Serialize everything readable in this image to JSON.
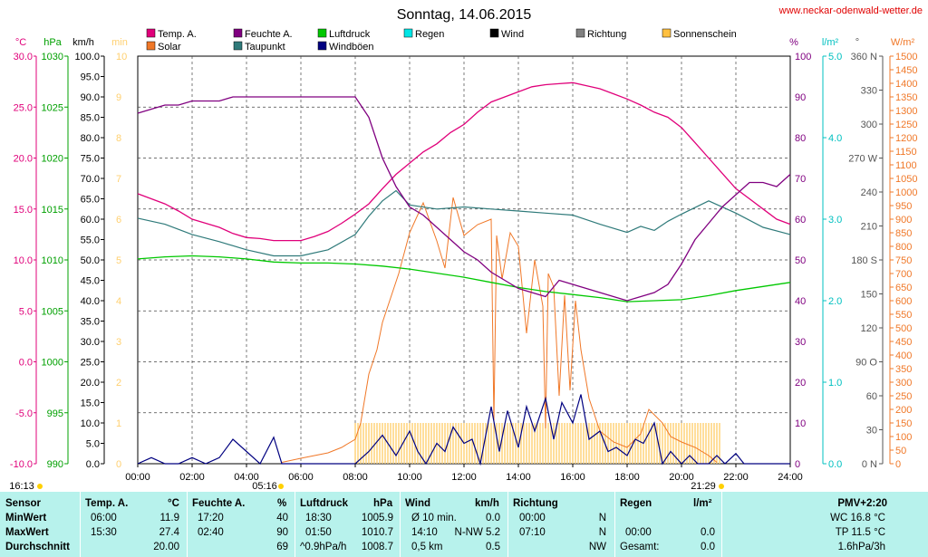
{
  "header": {
    "title": "Sonntag, 14.06.2015",
    "site": "www.neckar-odenwald-wetter.de"
  },
  "legend": [
    {
      "label": "Temp. A.",
      "color": "#e0007a"
    },
    {
      "label": "Feuchte A.",
      "color": "#800080"
    },
    {
      "label": "Luftdruck",
      "color": "#00c800"
    },
    {
      "label": "Regen",
      "color": "#00e6e6"
    },
    {
      "label": "Wind",
      "color": "#000000"
    },
    {
      "label": "Richtung",
      "color": "#808080"
    },
    {
      "label": "Sonnenschein",
      "color": "#ffc040"
    },
    {
      "label": "Solar",
      "color": "#f07828"
    },
    {
      "label": "Taupunkt",
      "color": "#2f7a7a"
    },
    {
      "label": "Windböen",
      "color": "#000080"
    }
  ],
  "axis_units": {
    "temp": "°C",
    "pressure": "hPa",
    "wind": "km/h",
    "sun": "min",
    "humidity": "%",
    "rain": "l/m²",
    "direction": "°",
    "solar": "W/m²"
  },
  "axes": {
    "temp_ticks": [
      "30.0",
      "25.0",
      "20.0",
      "15.0",
      "10.0",
      "5.0",
      "0.0",
      "-5.0",
      "-10.0"
    ],
    "pressure_ticks": [
      "1030",
      "1025",
      "1020",
      "1015",
      "1010",
      "1005",
      "1000",
      "995",
      "990"
    ],
    "wind_ticks": [
      "100.0",
      "95.0",
      "90.0",
      "85.0",
      "80.0",
      "75.0",
      "70.0",
      "65.0",
      "60.0",
      "55.0",
      "50.0",
      "45.0",
      "40.0",
      "35.0",
      "30.0",
      "25.0",
      "20.0",
      "15.0",
      "10.0",
      "5.0",
      "0.0"
    ],
    "sun_ticks": [
      "10",
      "9",
      "8",
      "7",
      "6",
      "5",
      "4",
      "3",
      "2",
      "1",
      "0"
    ],
    "humidity_ticks": [
      "100",
      "90",
      "80",
      "70",
      "60",
      "50",
      "40",
      "30",
      "20",
      "10",
      "0"
    ],
    "rain_ticks": [
      "5.0",
      "4.0",
      "3.0",
      "2.0",
      "1.0",
      "0.0"
    ],
    "direction_ticks": [
      "360 N",
      "330",
      "300",
      "270 W",
      "240",
      "210",
      "180 S",
      "150",
      "120",
      "90 O",
      "60",
      "30",
      "0 N"
    ],
    "solar_ticks": [
      "1500",
      "1450",
      "1400",
      "1350",
      "1300",
      "1250",
      "1200",
      "1150",
      "1100",
      "1050",
      "1000",
      "950",
      "900",
      "850",
      "800",
      "750",
      "700",
      "650",
      "600",
      "550",
      "500",
      "450",
      "400",
      "350",
      "300",
      "250",
      "200",
      "150",
      "100",
      "50",
      "0"
    ],
    "x_ticks": [
      "00:00",
      "02:00",
      "04:00",
      "06:00",
      "08:00",
      "10:00",
      "12:00",
      "14:00",
      "16:00",
      "18:00",
      "20:00",
      "22:00",
      "24:00"
    ],
    "markers": {
      "start": "16:13",
      "sunrise": "05:16",
      "sunset": "21:29"
    }
  },
  "chart_data": {
    "type": "line",
    "title": "Sonntag, 14.06.2015",
    "x_range": [
      "00:00",
      "24:00"
    ],
    "ylim_temp": [
      -10,
      30
    ],
    "ylim_pressure": [
      990,
      1030
    ],
    "ylim_wind": [
      0,
      100
    ],
    "ylim_humidity": [
      0,
      100
    ],
    "ylim_solar": [
      0,
      1500
    ],
    "grid": true,
    "series": [
      {
        "name": "Temp. A.",
        "unit": "°C",
        "x": [
          0,
          0.5,
          1,
          1.5,
          2,
          2.5,
          3,
          3.5,
          4,
          4.5,
          5,
          5.5,
          6,
          6.5,
          7,
          7.5,
          8,
          8.5,
          9,
          9.5,
          10,
          10.5,
          11,
          11.5,
          12,
          12.5,
          13,
          13.5,
          14,
          14.5,
          15,
          15.5,
          16,
          16.5,
          17,
          17.5,
          18,
          18.5,
          19,
          19.5,
          20,
          20.5,
          21,
          21.5,
          22,
          22.5,
          23,
          23.5,
          24
        ],
        "values": [
          16.5,
          16,
          15.5,
          14.8,
          14,
          13.6,
          13.2,
          12.6,
          12.2,
          12.1,
          11.9,
          11.9,
          11.9,
          12.3,
          12.8,
          13.6,
          14.5,
          15.5,
          17,
          18.4,
          19.5,
          20.6,
          21.4,
          22.5,
          23.3,
          24.5,
          25.5,
          26,
          26.5,
          27,
          27.2,
          27.3,
          27.4,
          27.1,
          26.8,
          26.3,
          25.8,
          25.2,
          24.5,
          24,
          23,
          21.5,
          20,
          18.5,
          17,
          16,
          15,
          14,
          13.5
        ]
      },
      {
        "name": "Feuchte A.",
        "unit": "%",
        "x": [
          0,
          0.5,
          1,
          1.5,
          2,
          2.5,
          3,
          3.5,
          4,
          4.5,
          5,
          5.5,
          6,
          6.5,
          7,
          7.5,
          8,
          8.5,
          9,
          9.5,
          10,
          10.5,
          11,
          11.5,
          12,
          12.5,
          13,
          13.5,
          14,
          14.5,
          15,
          15.5,
          16,
          16.5,
          17,
          17.5,
          18,
          18.5,
          19,
          19.5,
          20,
          20.5,
          21,
          21.5,
          22,
          22.5,
          23,
          23.5,
          24
        ],
        "values": [
          86,
          87,
          88,
          88,
          89,
          89,
          89,
          90,
          90,
          90,
          90,
          90,
          90,
          90,
          90,
          90,
          90,
          85,
          75,
          68,
          63,
          61,
          58,
          55,
          52,
          50,
          47,
          45,
          43,
          42,
          41,
          45,
          44,
          43,
          42,
          41,
          40,
          41,
          42,
          44,
          49,
          55,
          59,
          63,
          66,
          69,
          69,
          68,
          71
        ]
      },
      {
        "name": "Luftdruck",
        "unit": "hPa",
        "x": [
          0,
          1,
          2,
          3,
          4,
          5,
          6,
          7,
          8,
          9,
          10,
          11,
          12,
          13,
          14,
          15,
          16,
          17,
          18,
          19,
          20,
          21,
          22,
          23,
          24
        ],
        "values": [
          1010.1,
          1010.3,
          1010.4,
          1010.3,
          1010.1,
          1009.8,
          1009.7,
          1009.7,
          1009.6,
          1009.4,
          1009.1,
          1008.7,
          1008.3,
          1007.8,
          1007.3,
          1006.9,
          1006.6,
          1006.3,
          1005.9,
          1006,
          1006.1,
          1006.5,
          1007,
          1007.4,
          1007.8
        ]
      },
      {
        "name": "Taupunkt",
        "unit": "°C",
        "x": [
          0,
          1,
          2,
          3,
          4,
          5,
          6,
          7,
          8,
          8.5,
          9,
          9.5,
          10,
          11,
          12,
          13,
          14,
          15,
          16,
          17,
          18,
          18.5,
          19,
          19.5,
          20,
          21,
          22,
          23,
          24
        ],
        "values": [
          14.1,
          13.5,
          12.5,
          11.8,
          11.0,
          10.4,
          10.4,
          11.0,
          12.5,
          14.3,
          15.8,
          16.8,
          15.4,
          15.0,
          15.2,
          15.0,
          14.8,
          14.6,
          14.4,
          13.5,
          12.7,
          13.3,
          12.9,
          13.8,
          14.5,
          15.8,
          14.6,
          13.2,
          12.5
        ]
      },
      {
        "name": "Solar",
        "unit": "W/m²",
        "x": [
          5.3,
          6,
          7,
          7.5,
          8,
          8.2,
          8.5,
          8.8,
          9,
          9.3,
          9.6,
          10,
          10.5,
          11,
          11.3,
          11.6,
          12,
          12.5,
          13,
          13.1,
          13.2,
          13.4,
          13.7,
          14,
          14.3,
          14.6,
          14.9,
          15.0,
          15.1,
          15.3,
          15.5,
          15.7,
          15.9,
          16.1,
          16.3,
          16.6,
          17,
          17.5,
          18,
          18.5,
          18.8,
          19,
          19.3,
          19.6,
          20,
          20.5,
          21,
          21.3
        ],
        "values": [
          5,
          20,
          40,
          60,
          90,
          150,
          330,
          420,
          520,
          610,
          700,
          850,
          960,
          820,
          720,
          980,
          840,
          880,
          900,
          160,
          840,
          680,
          850,
          800,
          480,
          750,
          580,
          130,
          700,
          650,
          250,
          620,
          270,
          600,
          420,
          240,
          120,
          80,
          60,
          110,
          200,
          180,
          150,
          100,
          80,
          60,
          30,
          5
        ]
      },
      {
        "name": "Windböen",
        "unit": "km/h",
        "x": [
          0,
          0.5,
          1,
          1.5,
          2,
          2.5,
          3,
          3.5,
          4,
          4.5,
          5,
          5.3,
          5.6,
          6,
          7,
          8,
          8.5,
          9,
          9.5,
          10,
          10.3,
          10.6,
          11,
          11.3,
          11.6,
          12,
          12.3,
          12.6,
          13,
          13.3,
          13.6,
          14,
          14.3,
          14.6,
          15,
          15.3,
          15.6,
          16,
          16.3,
          16.6,
          17,
          17.3,
          17.6,
          18,
          18.3,
          18.6,
          19,
          19.3,
          19.6,
          20,
          20.3,
          20.6,
          21,
          21.3,
          21.6,
          22,
          22.3,
          23,
          24
        ],
        "values": [
          0,
          1.5,
          0,
          0,
          1.5,
          0,
          1.5,
          6,
          3,
          0,
          6.5,
          0,
          0,
          0,
          0,
          0,
          3,
          7,
          2,
          8,
          3,
          0,
          5,
          3,
          9,
          5,
          6,
          0,
          14,
          3,
          13,
          4,
          14,
          8,
          16,
          6,
          15,
          10,
          17,
          6,
          8,
          3,
          4,
          2,
          6,
          5,
          10,
          0,
          3,
          0,
          2,
          0,
          0,
          2,
          0,
          2.5,
          0,
          0,
          0
        ]
      },
      {
        "name": "Sonnenschein",
        "unit": "min",
        "x_start": 8.0,
        "x_end": 21.5,
        "value": 10
      }
    ]
  },
  "table": {
    "headers": {
      "sensor": "Sensor",
      "temp": "Temp. A.",
      "temp_unit": "°C",
      "hum": "Feuchte A.",
      "hum_unit": "%",
      "press": "Luftdruck",
      "press_unit": "hPa",
      "wind": "Wind",
      "wind_unit": "km/h",
      "dir": "Richtung",
      "rain": "Regen",
      "rain_unit": "l/m²",
      "pmv": "PMV+2:20"
    },
    "rows": [
      {
        "label": "MinWert",
        "temp_time": "06:00",
        "temp": "11.9",
        "hum_time": "17:20",
        "hum": "40",
        "press_time": "18:30",
        "press": "1005.9",
        "wind_label": "Ø 10 min.",
        "wind": "0.0",
        "dir_time": "00:00",
        "dir": "N",
        "rain_time": "",
        "rain": "",
        "pmv": "WC 16.8 °C"
      },
      {
        "label": "MaxWert",
        "temp_time": "15:30",
        "temp": "27.4",
        "hum_time": "02:40",
        "hum": "90",
        "press_time": "01:50",
        "press": "1010.7",
        "wind_label": "14:10",
        "wind": "N-NW 5.2",
        "dir_time": "07:10",
        "dir": "N",
        "rain_time": "00:00",
        "rain": "0.0",
        "pmv": "TP 11.5 °C"
      },
      {
        "label": "Durchschnitt",
        "temp_time": "",
        "temp": "20.00",
        "hum_time": "",
        "hum": "69",
        "press_time": "^0.9hPa/h",
        "press": "1008.7",
        "wind_label": "0,5 km",
        "wind": "0.5",
        "dir_time": "",
        "dir": "NW",
        "rain_time": "Gesamt:",
        "rain": "0.0",
        "pmv": "1.6hPa/3h"
      }
    ]
  }
}
